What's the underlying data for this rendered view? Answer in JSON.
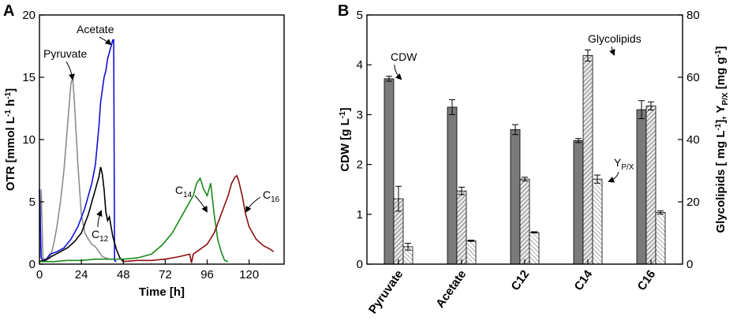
{
  "panels": {
    "a": "A",
    "b": "B"
  },
  "chart_data": [
    {
      "type": "line",
      "panel": "A",
      "xlabel": "Time [h]",
      "ylabel": {
        "main": "OTR [mmol L",
        "sup1": "-1",
        "mid": " h",
        "sup2": "-1",
        "end": "]"
      },
      "xlim": [
        0,
        140
      ],
      "ylim": [
        0,
        20
      ],
      "xticks": [
        0,
        24,
        48,
        72,
        96,
        120
      ],
      "yticks": [
        0,
        5,
        10,
        15,
        20
      ],
      "annotations": {
        "pyruvate": "Pyruvate",
        "acetate": "Acetate",
        "c12": {
          "main": "C",
          "sub": "12"
        },
        "c14": {
          "main": "C",
          "sub": "14"
        },
        "c16": {
          "main": "C",
          "sub": "16"
        }
      },
      "colors": {
        "pyruvate": "#8c8c8c",
        "acetate": "#1010e0",
        "c12": "#000000",
        "c14": "#1a8a1a",
        "c16": "#8b1010"
      },
      "series": [
        {
          "name": "Pyruvate",
          "x": [
            0,
            1,
            2,
            4,
            6,
            8,
            10,
            12,
            14,
            16,
            18,
            19,
            20,
            22,
            24,
            26,
            28,
            30,
            32,
            34,
            36,
            38,
            40
          ],
          "y": [
            0.5,
            6,
            0.5,
            0.3,
            0.5,
            1.5,
            3,
            5,
            7.5,
            11,
            14.5,
            15,
            13,
            8,
            4,
            2.5,
            2,
            1.6,
            1.4,
            1,
            0.6,
            0.5,
            0.4
          ]
        },
        {
          "name": "Acetate",
          "x": [
            0,
            1,
            2,
            3,
            6,
            10,
            14,
            18,
            22,
            26,
            30,
            32,
            34,
            35,
            36,
            37,
            38,
            39,
            40,
            41,
            42,
            42.5,
            43,
            44
          ],
          "y": [
            6,
            0.5,
            0.3,
            0.2,
            0.8,
            1,
            1.3,
            2,
            3,
            4.5,
            6.5,
            8,
            11,
            13,
            14,
            15,
            15.5,
            16.5,
            17,
            17.5,
            18,
            18,
            0.3,
            0.2
          ]
        },
        {
          "name": "C12",
          "x": [
            0,
            4,
            8,
            12,
            16,
            20,
            24,
            28,
            30,
            32,
            34,
            35,
            36,
            37,
            38,
            39,
            40,
            41,
            42,
            44,
            46,
            48
          ],
          "y": [
            0.2,
            0.4,
            0.7,
            1,
            1.3,
            1.8,
            2.5,
            4,
            5,
            6,
            7,
            7.8,
            7.2,
            6,
            4.2,
            3.5,
            3.8,
            3,
            2.2,
            1.2,
            0.5,
            0.2
          ]
        },
        {
          "name": "C14",
          "x": [
            0,
            8,
            16,
            24,
            32,
            40,
            48,
            56,
            64,
            70,
            76,
            80,
            84,
            88,
            90,
            92,
            94,
            96,
            98,
            100,
            102,
            104,
            106,
            108
          ],
          "y": [
            0.2,
            0.2,
            0.3,
            0.3,
            0.4,
            0.4,
            0.4,
            0.5,
            0.8,
            1.5,
            2.5,
            3.5,
            4.5,
            5.5,
            6.5,
            6.9,
            6,
            5.5,
            6.5,
            4,
            2,
            1,
            0.3,
            0.2
          ]
        },
        {
          "name": "C16",
          "x": [
            48,
            56,
            64,
            72,
            80,
            86,
            87,
            88,
            90,
            96,
            100,
            104,
            108,
            110,
            112,
            113,
            114,
            116,
            118,
            120,
            124,
            128,
            132,
            134
          ],
          "y": [
            0.2,
            0.3,
            0.3,
            0.4,
            0.6,
            0.8,
            0.1,
            0.8,
            1,
            1.6,
            2.5,
            4,
            5.5,
            6.5,
            7,
            7.1,
            6.7,
            5.5,
            4,
            3,
            2,
            1.5,
            1.2,
            1
          ]
        }
      ]
    },
    {
      "type": "bar",
      "panel": "B",
      "categories": [
        "Pyruvate",
        "Acetate",
        "C12",
        "C14",
        "C16"
      ],
      "ylabel_left": {
        "main": "CDW [g L",
        "sup": "-1",
        "end": "]"
      },
      "ylabel_right": {
        "p1": "Glycolipids [ mg L",
        "sup1": "-1",
        "p2": "], Y",
        "sub": "P/X",
        "p3": " [mg g",
        "sup2": "-1",
        "p4": "]"
      },
      "ylim_left": [
        0,
        5
      ],
      "ylim_right": [
        0,
        80
      ],
      "yticks_left": [
        0,
        1,
        2,
        3,
        4,
        5
      ],
      "yticks_right": [
        0,
        20,
        40,
        60,
        80
      ],
      "annotations": {
        "cdw": "CDW",
        "glycolipids": "Glycolipids",
        "ypx": {
          "main": "Y",
          "sub": "P/X"
        }
      },
      "colors": {
        "cdw": "#7a7a7a",
        "glyco": "#9a9a9a",
        "ypx": "#ffffff"
      },
      "series": [
        {
          "name": "CDW",
          "axis": "left",
          "values": [
            3.72,
            3.15,
            2.7,
            2.48,
            3.1
          ],
          "errors": [
            0.05,
            0.15,
            0.1,
            0.04,
            0.18
          ]
        },
        {
          "name": "Glycolipids",
          "axis": "right",
          "values": [
            21,
            23.5,
            27.3,
            67,
            50.8
          ],
          "errors": [
            4,
            1.2,
            0.6,
            1.8,
            1.3
          ]
        },
        {
          "name": "Y_P/X",
          "axis": "right",
          "values": [
            5.6,
            7.5,
            10.2,
            27.3,
            16.6
          ],
          "errors": [
            1.1,
            0.2,
            0.2,
            1.3,
            0.5
          ]
        }
      ]
    }
  ]
}
